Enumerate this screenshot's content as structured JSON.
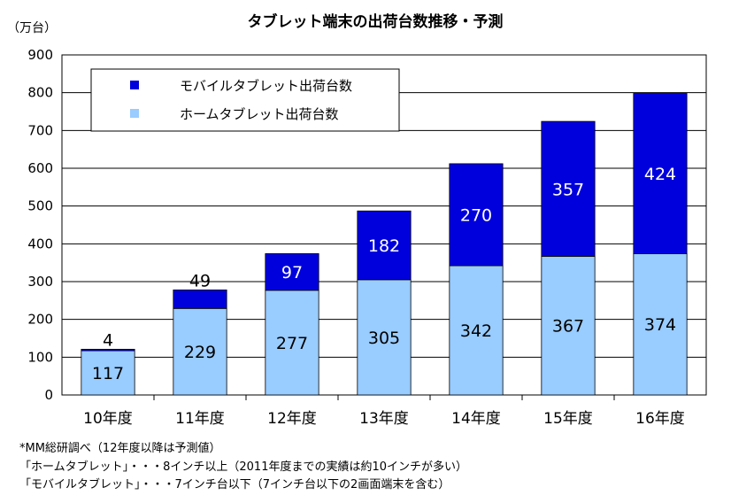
{
  "chart_data": {
    "type": "bar",
    "stacked": true,
    "title": "タブレット端末の出荷台数推移・予測",
    "ylabel": "（万台）",
    "xlabel": "",
    "ylim": [
      0,
      900
    ],
    "yticks": [
      0,
      100,
      200,
      300,
      400,
      500,
      600,
      700,
      800,
      900
    ],
    "categories": [
      "10年度",
      "11年度",
      "12年度",
      "13年度",
      "14年度",
      "15年度",
      "16年度"
    ],
    "series": [
      {
        "name": "ホームタブレット出荷台数",
        "color": "#99ccff",
        "label_color": "#000000",
        "values": [
          117,
          229,
          277,
          305,
          342,
          367,
          374
        ]
      },
      {
        "name": "モバイルタブレット出荷台数",
        "color": "#0000dd",
        "label_color": "#ffffff",
        "values": [
          4,
          49,
          97,
          182,
          270,
          357,
          424
        ]
      }
    ],
    "legend_order": [
      1,
      0
    ],
    "legend_position": "top-left",
    "grid": true
  },
  "notes": [
    "*MM総研調べ（12年度以降は予測値）",
    "「ホームタブレット」・・・8インチ以上（2011年度までの実績は約10インチが多い）",
    "「モバイルタブレット」・・・7インチ台以下（7インチ台以下の2画面端末を含む）"
  ]
}
